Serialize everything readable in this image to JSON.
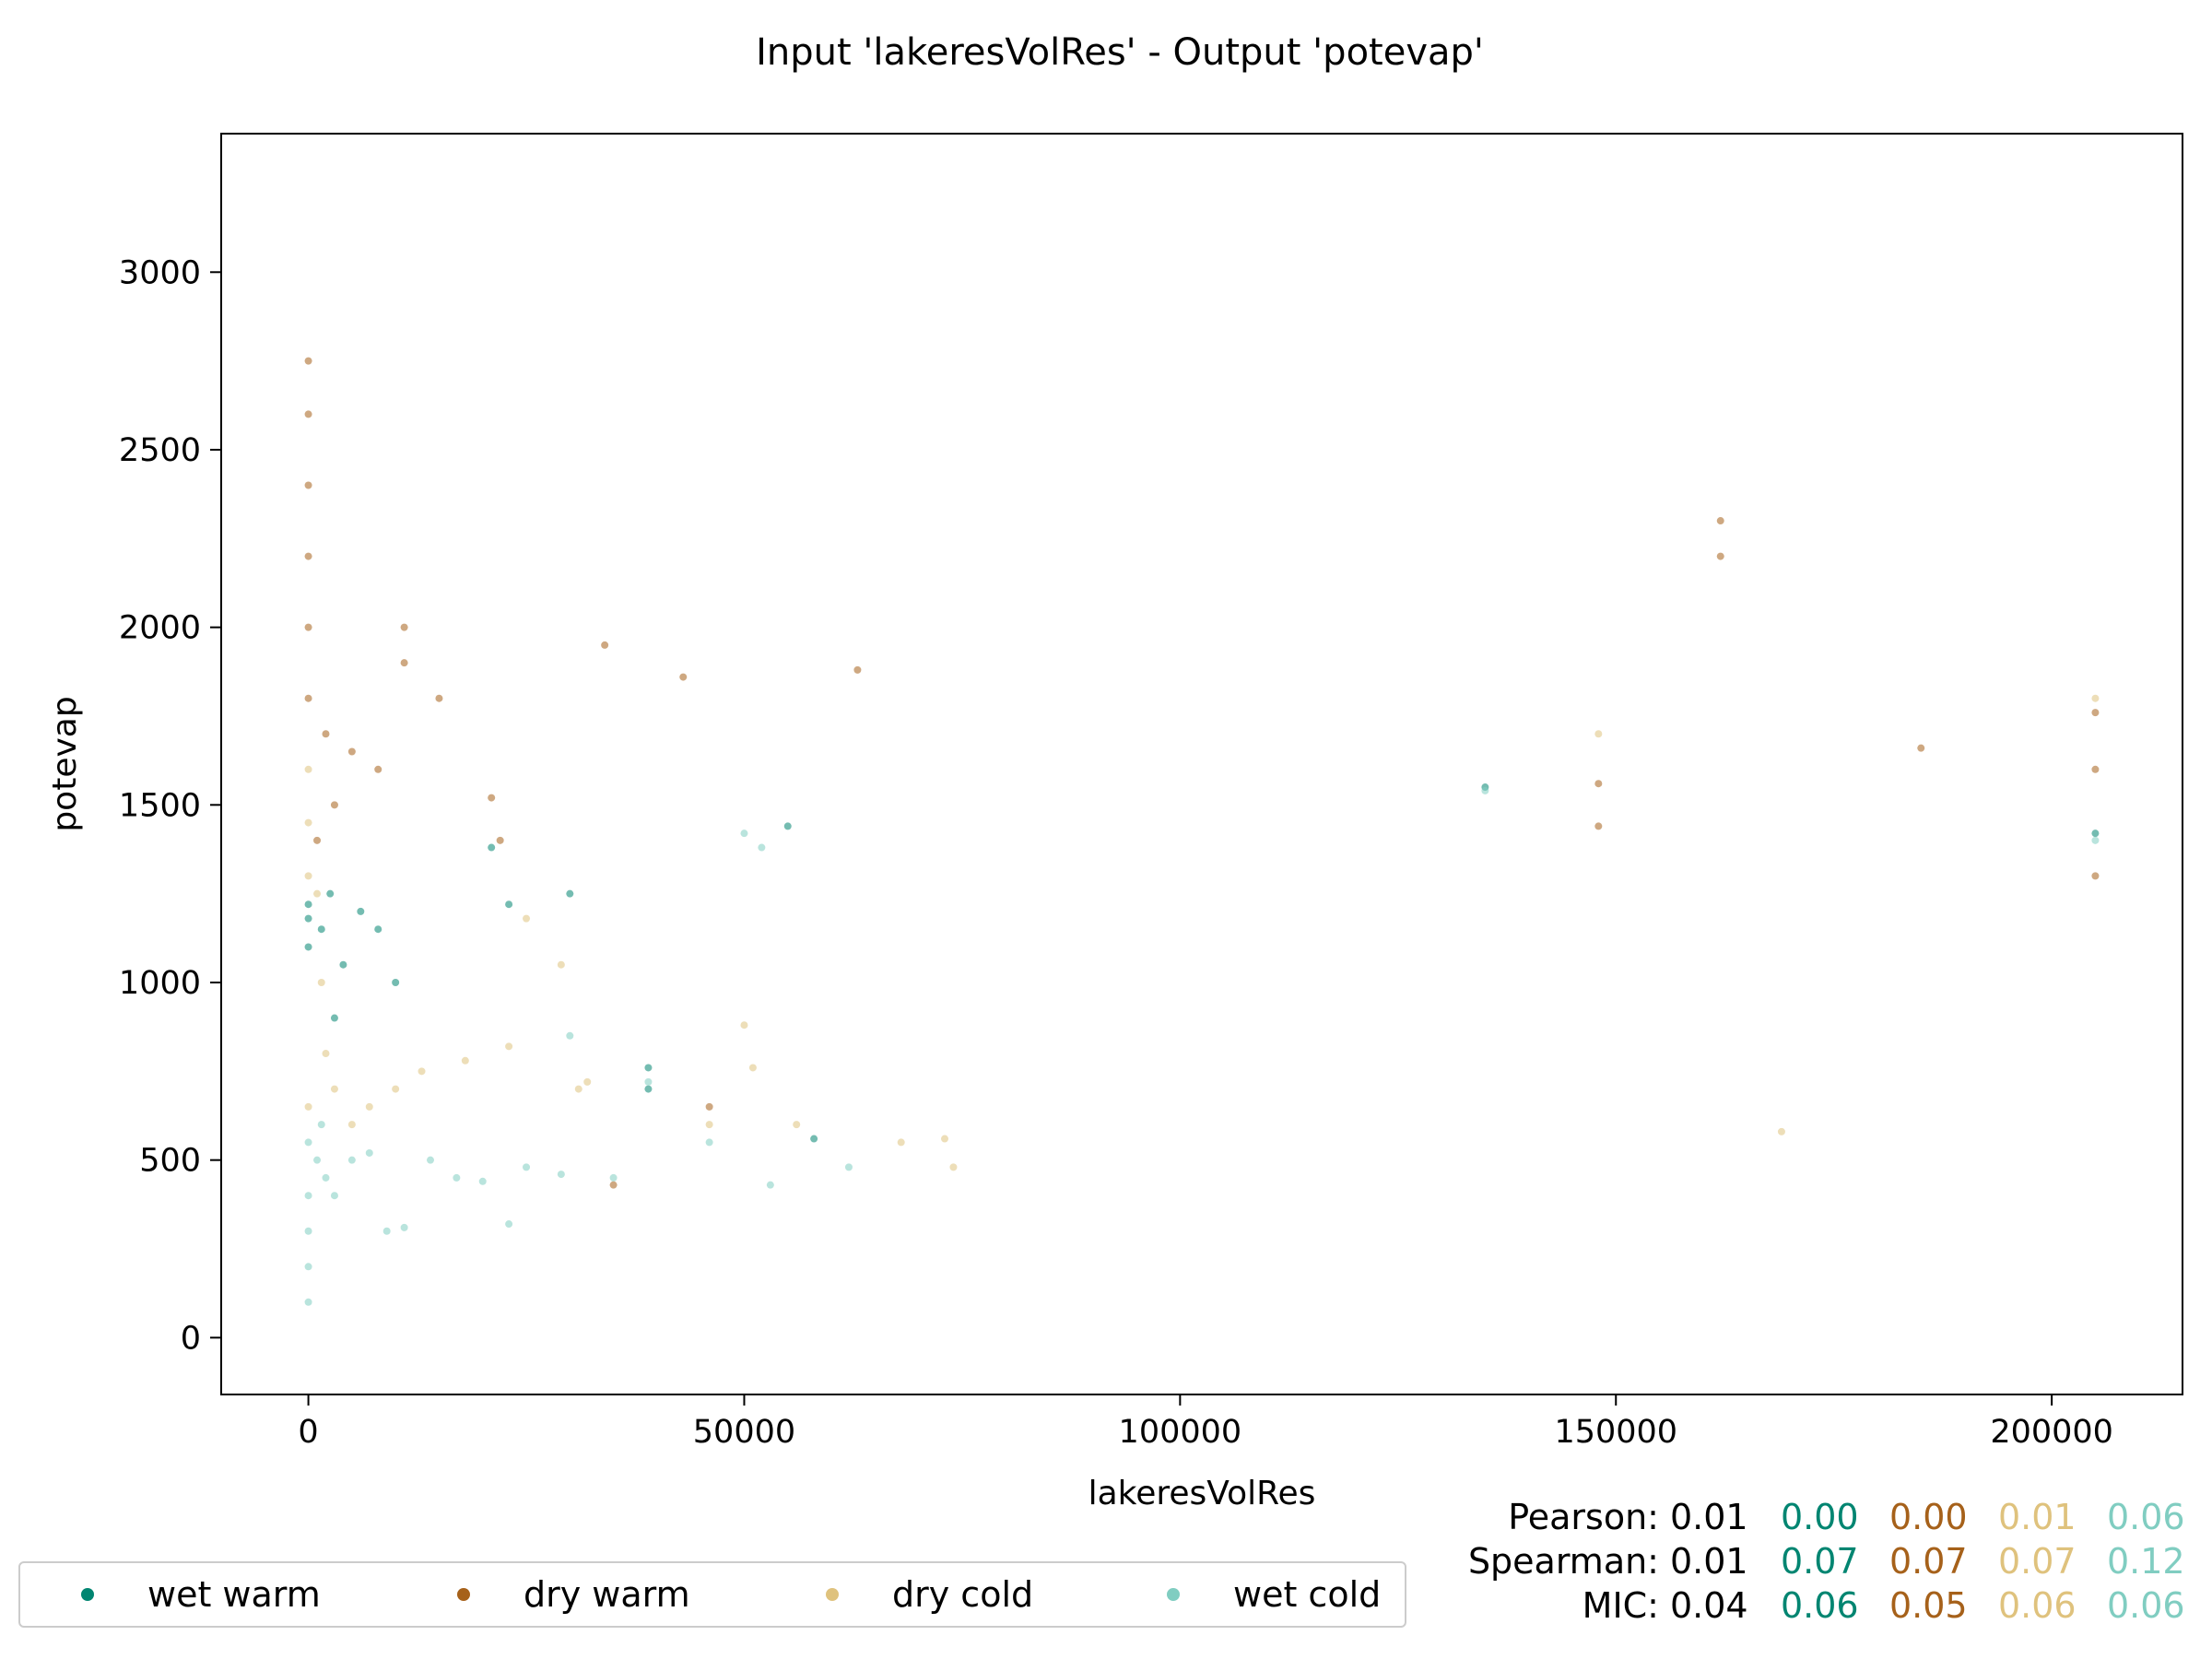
{
  "chart_data": {
    "type": "scatter",
    "title": "Input 'lakeresVolRes' - Output 'potevap'",
    "xlabel": "lakeresVolRes",
    "ylabel": "potevap",
    "xlim": [
      -10000,
      215000
    ],
    "ylim": [
      -160,
      3390
    ],
    "xticks": [
      0,
      50000,
      100000,
      150000,
      200000
    ],
    "yticks": [
      0,
      500,
      1000,
      1500,
      2000,
      2500,
      3000
    ],
    "grid": false,
    "legend_placement": "bottom-left outside",
    "series": [
      {
        "name": "wet warm",
        "color": "#018571",
        "x": [
          0,
          0,
          0,
          1500,
          2500,
          4000,
          6000,
          10000,
          21000,
          23000,
          30000,
          39000,
          39000,
          55000,
          58000,
          135000,
          205000,
          3000,
          8000
        ],
        "y": [
          1220,
          1180,
          1100,
          1150,
          1250,
          1050,
          1200,
          1000,
          1380,
          1220,
          1250,
          760,
          700,
          1440,
          560,
          1550,
          1420,
          900,
          1150
        ]
      },
      {
        "name": "dry warm",
        "color": "#a6611a",
        "x": [
          0,
          0,
          0,
          0,
          0,
          0,
          2000,
          3000,
          5000,
          8000,
          11000,
          11000,
          15000,
          21000,
          22000,
          34000,
          43000,
          46000,
          63000,
          148000,
          148000,
          162000,
          162000,
          185000,
          205000,
          205000,
          205000,
          35000,
          1000
        ],
        "y": [
          2750,
          2600,
          2400,
          2200,
          2000,
          1800,
          1700,
          1500,
          1650,
          1600,
          2000,
          1900,
          1800,
          1520,
          1400,
          1950,
          1860,
          650,
          1880,
          1560,
          1440,
          2300,
          2200,
          1660,
          1760,
          1600,
          1300,
          430,
          1400
        ]
      },
      {
        "name": "dry cold",
        "color": "#dfc27d",
        "x": [
          0,
          0,
          0,
          0,
          1000,
          2000,
          3000,
          5000,
          7000,
          10000,
          13000,
          18000,
          23000,
          25000,
          29000,
          31000,
          32000,
          46000,
          50000,
          51000,
          56000,
          68000,
          73000,
          74000,
          169000,
          148000,
          205000,
          1500
        ],
        "y": [
          1600,
          1450,
          1300,
          650,
          1250,
          800,
          700,
          600,
          650,
          700,
          750,
          780,
          820,
          1180,
          1050,
          700,
          720,
          600,
          880,
          760,
          600,
          550,
          560,
          480,
          580,
          1700,
          1800,
          1000
        ]
      },
      {
        "name": "wet cold",
        "color": "#80cdc1",
        "x": [
          0,
          0,
          0,
          0,
          0,
          1000,
          2000,
          3000,
          5000,
          7000,
          9000,
          11000,
          14000,
          17000,
          20000,
          23000,
          25000,
          29000,
          30000,
          35000,
          39000,
          46000,
          50000,
          52000,
          53000,
          62000,
          135000,
          205000,
          1500
        ],
        "y": [
          550,
          400,
          300,
          200,
          100,
          500,
          450,
          400,
          500,
          520,
          300,
          310,
          500,
          450,
          440,
          320,
          480,
          460,
          850,
          450,
          720,
          550,
          1420,
          1380,
          430,
          480,
          1540,
          1400,
          600
        ]
      }
    ],
    "stats": {
      "pearson_label": "Pearson:",
      "spearman_label": "Spearman:",
      "mic_label": "MIC:",
      "pearson": [
        "0.01",
        "0.00",
        "0.00",
        "0.01",
        "0.06"
      ],
      "spearman": [
        "0.01",
        "0.07",
        "0.07",
        "0.07",
        "0.12"
      ],
      "mic": [
        "0.04",
        "0.06",
        "0.05",
        "0.06",
        "0.06"
      ],
      "colors": [
        "#000000",
        "#018571",
        "#a6611a",
        "#dfc27d",
        "#80cdc1"
      ]
    }
  }
}
